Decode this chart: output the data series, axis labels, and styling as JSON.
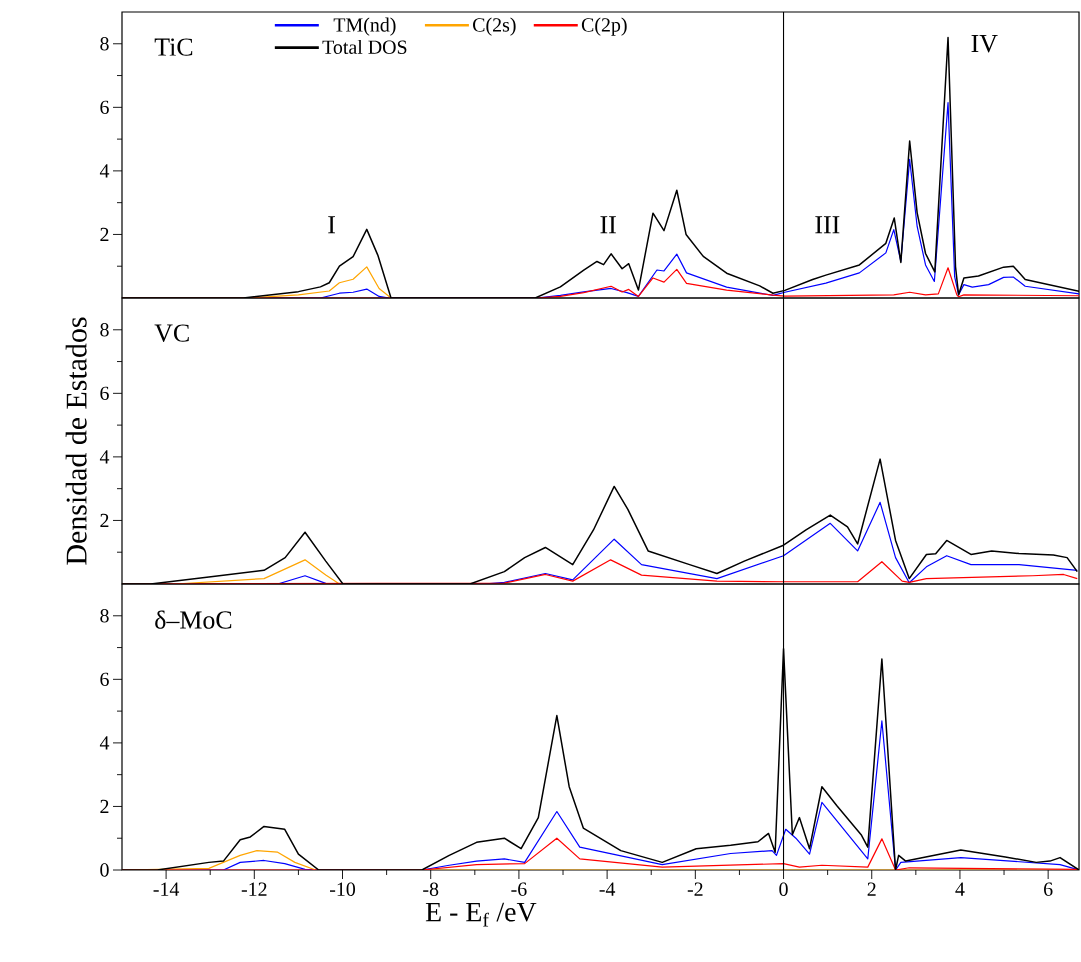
{
  "chart_data": [
    {
      "type": "line",
      "title": "TiC",
      "xlim": [
        -15,
        6.7
      ],
      "ylim": [
        0,
        9
      ],
      "yticks": [
        {
          "value": 1,
          "label": null
        },
        2,
        {
          "value": 3,
          "label": null
        },
        4,
        {
          "value": 5,
          "label": null
        },
        6,
        {
          "value": 7,
          "label": null
        },
        8
      ],
      "tick_labels": "y",
      "legend": "top",
      "ref_lines": [
        {
          "axis": "x",
          "value": 0,
          "color": "#000000"
        }
      ],
      "annotations": [
        "I",
        "II",
        "III",
        "IV"
      ],
      "series": [
        {
          "name": "TM(nd)",
          "color": "#0000ff",
          "x": [
            -15,
            -10.5,
            -10.07,
            -9.76,
            -9.45,
            -9.17,
            -8.95,
            -5.6,
            -5.06,
            -4.53,
            -3.91,
            -3.55,
            -3.29,
            -2.87,
            -2.71,
            -2.42,
            -2.2,
            -1.29,
            -0.24,
            0.03,
            0.96,
            1.72,
            2.32,
            2.5,
            2.66,
            2.86,
            3.03,
            3.22,
            3.42,
            3.73,
            3.88,
            3.97,
            4.09,
            4.28,
            4.65,
            4.99,
            5.21,
            5.48,
            6.7
          ],
          "values": [
            0,
            0,
            0.15,
            0.18,
            0.28,
            0.05,
            0,
            0,
            0.08,
            0.19,
            0.3,
            0.17,
            0.05,
            0.88,
            0.85,
            1.38,
            0.79,
            0.34,
            0.08,
            0.18,
            0.47,
            0.79,
            1.42,
            2.15,
            1.15,
            4.36,
            2.25,
            1.04,
            0.52,
            6.15,
            0.67,
            0.1,
            0.42,
            0.34,
            0.42,
            0.65,
            0.66,
            0.37,
            0.13
          ]
        },
        {
          "name": "C(2s)",
          "color": "#ffa500",
          "x": [
            -15,
            -12.1,
            -11,
            -10.3,
            -10.07,
            -9.76,
            -9.45,
            -9.17,
            -8.9
          ],
          "values": [
            0,
            0,
            0.1,
            0.22,
            0.48,
            0.59,
            0.98,
            0.3,
            0
          ]
        },
        {
          "name": "C(2p)",
          "color": "#ff0000",
          "x": [
            -15,
            -5.6,
            -5.06,
            -4.53,
            -3.91,
            -3.66,
            -3.51,
            -3.29,
            -2.96,
            -2.71,
            -2.42,
            -2.2,
            -1.29,
            -0.24,
            0.03,
            2.5,
            2.86,
            3.22,
            3.51,
            3.73,
            3.93,
            3.97,
            4.09,
            6.7
          ],
          "values": [
            0,
            0,
            0.05,
            0.17,
            0.37,
            0.19,
            0.27,
            0.05,
            0.63,
            0.5,
            0.9,
            0.46,
            0.25,
            0.09,
            0.06,
            0.1,
            0.18,
            0.1,
            0.13,
            0.95,
            0.1,
            0.04,
            0.1,
            0.07
          ]
        },
        {
          "name": "Total DOS",
          "color": "#000000",
          "x": [
            -15,
            -12.25,
            -11,
            -10.5,
            -10.3,
            -10.07,
            -9.76,
            -9.45,
            -9.2,
            -8.9,
            -5.63,
            -5.06,
            -4.53,
            -4.23,
            -4.08,
            -3.91,
            -3.66,
            -3.51,
            -3.29,
            -2.96,
            -2.71,
            -2.42,
            -2.21,
            -1.82,
            -1.29,
            -0.54,
            -0.24,
            0.03,
            0.66,
            0.96,
            1.72,
            2.32,
            2.51,
            2.66,
            2.86,
            3.03,
            3.22,
            3.43,
            3.73,
            3.9,
            3.97,
            4.09,
            4.42,
            4.99,
            5.21,
            5.48,
            6.7
          ],
          "values": [
            0,
            0,
            0.2,
            0.35,
            0.48,
            1.0,
            1.3,
            2.16,
            1.35,
            0,
            0,
            0.35,
            0.88,
            1.15,
            1.05,
            1.39,
            0.92,
            1.08,
            0.25,
            2.67,
            2.12,
            3.39,
            2.0,
            1.31,
            0.78,
            0.38,
            0.15,
            0.24,
            0.58,
            0.72,
            1.04,
            1.72,
            2.52,
            1.12,
            4.94,
            2.68,
            1.4,
            0.82,
            8.2,
            0.98,
            0.1,
            0.63,
            0.69,
            0.97,
            1.0,
            0.58,
            0.21
          ]
        }
      ]
    },
    {
      "type": "line",
      "title": "VC",
      "ylabel": "Densidad de Estados",
      "xlim": [
        -15,
        6.7
      ],
      "ylim": [
        0,
        9
      ],
      "yticks": [
        {
          "value": 1,
          "label": null
        },
        2,
        {
          "value": 3,
          "label": null
        },
        4,
        {
          "value": 5,
          "label": null
        },
        6,
        {
          "value": 7,
          "label": null
        },
        8
      ],
      "tick_labels": "y",
      "ref_lines": [
        {
          "axis": "x",
          "value": 0,
          "color": "#000000"
        }
      ],
      "series": [
        {
          "color": "#0000ff",
          "x": [
            -15,
            -11.47,
            -10.85,
            -10.38,
            -10.1,
            -6.8,
            -6.33,
            -5.4,
            -4.78,
            -3.84,
            -3.22,
            -1.51,
            0,
            1.06,
            1.68,
            2.19,
            2.54,
            2.85,
            3.24,
            3.7,
            4.25,
            5.34,
            6.66
          ],
          "values": [
            0,
            0,
            0.26,
            0.02,
            0,
            0,
            0.05,
            0.33,
            0.13,
            1.41,
            0.61,
            0.17,
            0.89,
            1.91,
            1.04,
            2.57,
            0.83,
            0.04,
            0.54,
            0.89,
            0.61,
            0.61,
            0.43
          ]
        },
        {
          "color": "#ffa500",
          "x": [
            -15,
            -13.8,
            -11.78,
            -10.85,
            -10.38,
            -10.07
          ],
          "values": [
            0,
            0,
            0.17,
            0.76,
            0.28,
            0
          ]
        },
        {
          "color": "#ff0000",
          "x": [
            -15,
            -6.33,
            -5.4,
            -4.78,
            -3.92,
            -3.22,
            -1.51,
            0,
            1.68,
            2.23,
            2.69,
            2.85,
            3.24,
            5.65,
            6.35,
            6.66
          ],
          "values": [
            0,
            0.03,
            0.3,
            0.09,
            0.76,
            0.28,
            0.09,
            0.07,
            0.07,
            0.7,
            0.09,
            0.05,
            0.17,
            0.26,
            0.3,
            0.17
          ]
        },
        {
          "color": "#000000",
          "x": [
            -15,
            -14.35,
            -13.03,
            -11.78,
            -11.3,
            -10.85,
            -10.38,
            -9.99,
            -7.11,
            -6.33,
            -5.87,
            -5.4,
            -4.78,
            -4.31,
            -3.84,
            -3.53,
            -3.07,
            -2.13,
            -1.51,
            -0.89,
            0,
            0.51,
            1.06,
            1.45,
            1.68,
            2.19,
            2.54,
            2.85,
            3.24,
            3.45,
            3.7,
            4.25,
            4.72,
            5.34,
            6.12,
            6.43,
            6.66
          ],
          "values": [
            0,
            0,
            0.22,
            0.43,
            0.83,
            1.63,
            0.72,
            0,
            0,
            0.39,
            0.83,
            1.15,
            0.61,
            1.7,
            3.07,
            2.35,
            1.04,
            0.61,
            0.33,
            0.72,
            1.22,
            1.7,
            2.17,
            1.8,
            1.26,
            3.93,
            1.37,
            0.17,
            0.93,
            0.95,
            1.37,
            0.93,
            1.04,
            0.96,
            0.91,
            0.83,
            0.39
          ]
        }
      ]
    },
    {
      "type": "line",
      "title": "δ–MoC",
      "xlabel": "E - E$_{f}$ /eV",
      "xlim": [
        -15,
        6.7
      ],
      "ylim": [
        0,
        9
      ],
      "xticks": [
        -14,
        {
          "value": -13,
          "label": null
        },
        -12,
        {
          "value": -11,
          "label": null
        },
        -10,
        {
          "value": -9,
          "label": null
        },
        -8,
        {
          "value": -7,
          "label": null
        },
        -6,
        {
          "value": -5,
          "label": null
        },
        -4,
        {
          "value": -3,
          "label": null
        },
        -2,
        {
          "value": -1,
          "label": null
        },
        0,
        {
          "value": 1,
          "label": null
        },
        2,
        {
          "value": 3,
          "label": null
        },
        4,
        {
          "value": 5,
          "label": null
        },
        6
      ],
      "yticks": [
        0,
        {
          "value": 1,
          "label": null
        },
        2,
        {
          "value": 3,
          "label": null
        },
        4,
        {
          "value": 5,
          "label": null
        },
        6,
        {
          "value": 7,
          "label": null
        },
        8
      ],
      "ref_lines": [
        {
          "axis": "x",
          "value": 0,
          "color": "#000000"
        }
      ],
      "series": [
        {
          "color": "#0000ff",
          "x": [
            -15,
            -12.7,
            -12.32,
            -11.78,
            -11.31,
            -10.85,
            -8.2,
            -7.58,
            -6.96,
            -6.33,
            -5.87,
            -5.14,
            -4.62,
            -2.75,
            -1.2,
            -0.26,
            -0.16,
            0.05,
            0.28,
            0.59,
            0.87,
            1.91,
            2.23,
            2.54,
            2.66,
            4.02,
            6.27,
            6.7
          ],
          "values": [
            0,
            0,
            0.24,
            0.3,
            0.2,
            0.02,
            0,
            0.15,
            0.28,
            0.35,
            0.24,
            1.84,
            0.72,
            0.17,
            0.52,
            0.61,
            0.46,
            1.28,
            1.0,
            0.5,
            2.13,
            0.35,
            4.69,
            0,
            0.24,
            0.39,
            0.17,
            0
          ]
        },
        {
          "color": "#ffa500",
          "x": [
            -15,
            -13.03,
            -12.32,
            -11.94,
            -11.47,
            -11.08,
            -10.61,
            6.7
          ],
          "values": [
            0,
            0.05,
            0.46,
            0.61,
            0.56,
            0.24,
            0,
            0
          ]
        },
        {
          "color": "#ff0000",
          "x": [
            -15,
            -8.2,
            -6.96,
            -5.87,
            -5.14,
            -4.62,
            -2.75,
            0,
            0.36,
            0.87,
            1.91,
            2.23,
            2.54,
            2.85,
            6.7
          ],
          "values": [
            0,
            0,
            0.17,
            0.2,
            1.0,
            0.35,
            0.09,
            0.2,
            0.09,
            0.15,
            0.09,
            0.98,
            0,
            0.07,
            0.02
          ]
        },
        {
          "color": "#000000",
          "x": [
            -15,
            -14.2,
            -13.03,
            -12.7,
            -12.32,
            -12.09,
            -11.78,
            -11.31,
            -11.0,
            -10.54,
            -8.2,
            -7.58,
            -6.96,
            -6.33,
            -5.95,
            -5.56,
            -5.14,
            -4.86,
            -4.54,
            -3.69,
            -2.75,
            -1.98,
            -1.2,
            -0.58,
            -0.34,
            -0.19,
            0,
            0.2,
            0.36,
            0.59,
            0.87,
            1.21,
            1.76,
            1.91,
            2.23,
            2.54,
            2.61,
            2.77,
            4.02,
            5.03,
            5.73,
            6.04,
            6.27,
            6.7
          ],
          "values": [
            0,
            0,
            0.24,
            0.28,
            0.95,
            1.04,
            1.37,
            1.28,
            0.5,
            0,
            0,
            0.46,
            0.87,
            1.0,
            0.67,
            1.65,
            4.86,
            2.62,
            1.32,
            0.61,
            0.24,
            0.67,
            0.78,
            0.89,
            1.15,
            0.56,
            6.96,
            1.11,
            1.65,
            0.67,
            2.62,
            2.02,
            1.11,
            0.72,
            6.64,
            0,
            0.46,
            0.28,
            0.63,
            0.41,
            0.24,
            0.28,
            0.39,
            0
          ]
        }
      ]
    }
  ]
}
